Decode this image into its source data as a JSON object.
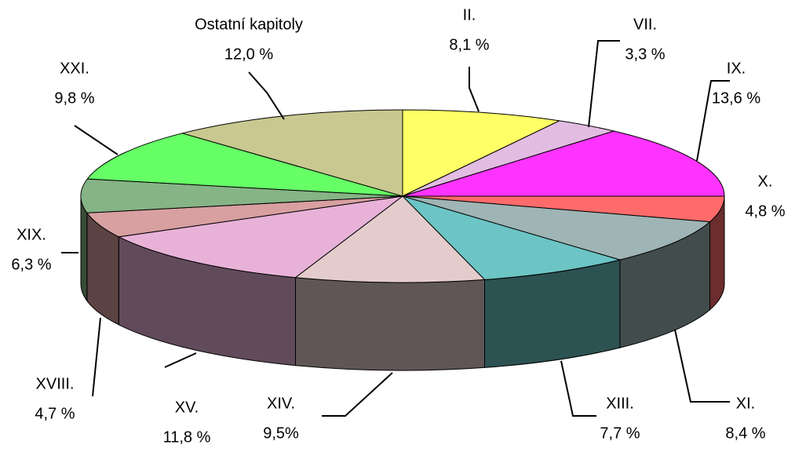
{
  "chart_data": {
    "type": "pie3d",
    "categories": [
      "II.",
      "VII.",
      "IX.",
      "X.",
      "XI.",
      "XIII.",
      "XIV.",
      "XV.",
      "XVIII.",
      "XIX.",
      "XXI.",
      "Ostatní kapitoly"
    ],
    "values": [
      8.1,
      3.3,
      13.6,
      4.8,
      8.4,
      7.7,
      9.5,
      11.8,
      4.7,
      6.3,
      9.8,
      12.0
    ],
    "value_labels": [
      "8,1 %",
      "3,3 %",
      "13,6 %",
      "4,8 %",
      "8,4 %",
      "7,7 %",
      "9,5%",
      "11,8 %",
      "4,7 %",
      "6,3 %",
      "9,8 %",
      "12,0 %"
    ],
    "colors": [
      "#ffff66",
      "#e2bce2",
      "#ff33ff",
      "#ff6b6b",
      "#9fb4b4",
      "#6cc4c4",
      "#e4cccc",
      "#e8b2d8",
      "#d8a0a0",
      "#86b486",
      "#66ff66",
      "#c8c890"
    ]
  }
}
